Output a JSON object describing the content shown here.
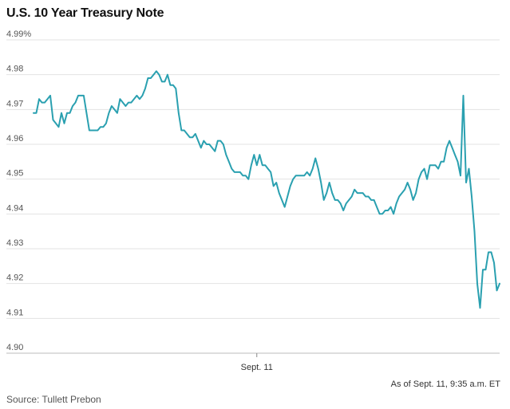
{
  "header": {
    "title": "U.S. 10 Year Treasury Note"
  },
  "footer": {
    "note": "As of Sept. 11, 9:35 a.m. ET",
    "source": "Source: Tullett Prebon"
  },
  "colors": {
    "line": "#2AA0B0",
    "grid": "#e3e3e3",
    "tick_text": "#555555"
  },
  "chart_data": {
    "type": "line",
    "title": "U.S. 10 Year Treasury Note",
    "xlabel": "",
    "ylabel": "",
    "grid": true,
    "ylim": [
      4.9,
      4.99
    ],
    "y_ticks": [
      4.9,
      4.91,
      4.92,
      4.93,
      4.94,
      4.95,
      4.96,
      4.97,
      4.98,
      4.99
    ],
    "y_tick_labels": [
      "4.90",
      "4.91",
      "4.92",
      "4.93",
      "4.94",
      "4.95",
      "4.96",
      "4.97",
      "4.98",
      "4.99%"
    ],
    "x_tick_labels": [
      {
        "label": "Sept. 11",
        "index": 80
      }
    ],
    "series": [
      {
        "values": [
          4.969,
          4.969,
          4.973,
          4.972,
          4.972,
          4.973,
          4.974,
          4.967,
          4.966,
          4.965,
          4.969,
          4.966,
          4.969,
          4.969,
          4.971,
          4.972,
          4.974,
          4.974,
          4.974,
          4.969,
          4.964,
          4.964,
          4.964,
          4.964,
          4.965,
          4.965,
          4.966,
          4.969,
          4.971,
          4.97,
          4.969,
          4.973,
          4.972,
          4.971,
          4.972,
          4.972,
          4.973,
          4.974,
          4.973,
          4.974,
          4.976,
          4.979,
          4.979,
          4.98,
          4.981,
          4.98,
          4.978,
          4.978,
          4.98,
          4.977,
          4.977,
          4.976,
          4.969,
          4.964,
          4.964,
          4.963,
          4.962,
          4.962,
          4.963,
          4.961,
          4.959,
          4.961,
          4.96,
          4.96,
          4.959,
          4.958,
          4.961,
          4.961,
          4.96,
          4.957,
          4.955,
          4.953,
          4.952,
          4.952,
          4.952,
          4.951,
          4.951,
          4.95,
          4.954,
          4.957,
          4.954,
          4.957,
          4.954,
          4.954,
          4.953,
          4.952,
          4.948,
          4.949,
          4.946,
          4.944,
          4.942,
          4.945,
          4.948,
          4.95,
          4.951,
          4.951,
          4.951,
          4.951,
          4.952,
          4.951,
          4.953,
          4.956,
          4.953,
          4.949,
          4.944,
          4.946,
          4.949,
          4.946,
          4.944,
          4.944,
          4.943,
          4.941,
          4.943,
          4.944,
          4.945,
          4.947,
          4.946,
          4.946,
          4.946,
          4.945,
          4.945,
          4.944,
          4.944,
          4.942,
          4.94,
          4.94,
          4.941,
          4.941,
          4.942,
          4.94,
          4.943,
          4.945,
          4.946,
          4.947,
          4.949,
          4.947,
          4.944,
          4.946,
          4.95,
          4.952,
          4.953,
          4.95,
          4.954,
          4.954,
          4.954,
          4.953,
          4.955,
          4.955,
          4.959,
          4.961,
          4.959,
          4.957,
          4.955,
          4.951,
          4.974,
          4.949,
          4.953,
          4.945,
          4.935,
          4.92,
          4.913,
          4.924,
          4.924,
          4.929,
          4.929,
          4.926,
          4.918,
          4.92
        ]
      }
    ]
  }
}
